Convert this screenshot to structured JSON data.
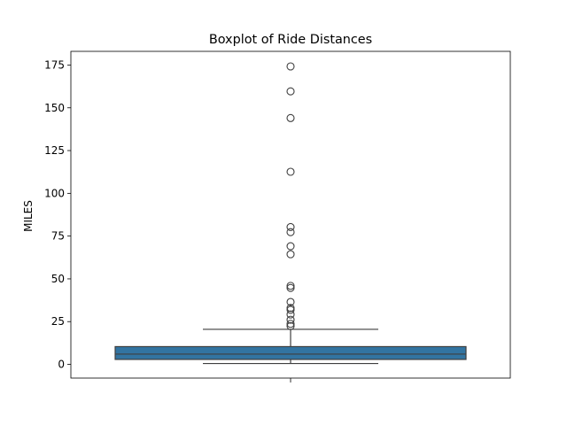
{
  "chart_data": {
    "type": "boxplot",
    "title": "Boxplot of Ride Distances",
    "xlabel": "",
    "ylabel": "MILES",
    "ylim": [
      -8,
      183
    ],
    "yticks": [
      0,
      25,
      50,
      75,
      100,
      125,
      150,
      175
    ],
    "grid": false,
    "legend": "none",
    "box": {
      "whisker_low": 0.5,
      "q1": 2.9,
      "median": 6.0,
      "q3": 10.4,
      "whisker_high": 20.5
    },
    "outliers": [
      174.2,
      159.6,
      144.0,
      112.6,
      80.3,
      77.3,
      69.1,
      64.4,
      45.9,
      44.7,
      36.5,
      33.0,
      31.9,
      29.2,
      26.1,
      23.7,
      22.4
    ],
    "colors": {
      "box_fill": "#3274a1",
      "line": "#3f3f3f",
      "spine": "#000000"
    }
  }
}
